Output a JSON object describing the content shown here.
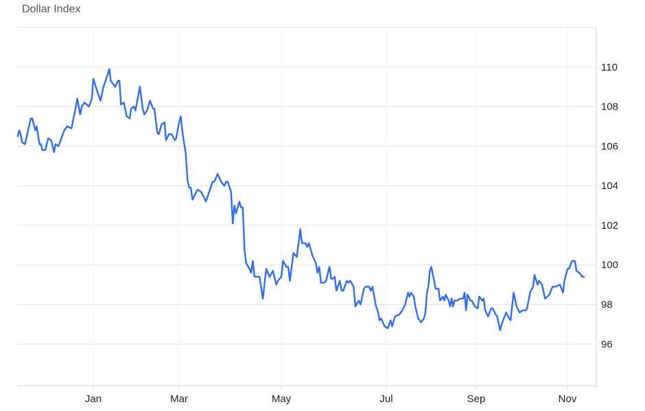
{
  "chart_data": {
    "type": "line",
    "title": "Dollar Index",
    "xlabel": "",
    "ylabel": "",
    "ylim": [
      93.9,
      112
    ],
    "grid": true,
    "y_axis_side": "right",
    "y_ticks": [
      96,
      98,
      100,
      102,
      104,
      106,
      108,
      110
    ],
    "x_ticks": [
      {
        "label": "Jan",
        "date": "2025-01-01"
      },
      {
        "label": "Mar",
        "date": "2025-03-01"
      },
      {
        "label": "May",
        "date": "2025-05-01"
      },
      {
        "label": "Jul",
        "date": "2025-07-01"
      },
      {
        "label": "Sep",
        "date": "2025-09-01"
      },
      {
        "label": "Nov",
        "date": "2025-11-01"
      }
    ],
    "line_color": "#2f6bff",
    "series": [
      {
        "points": [
          [
            "2024-11-10",
            106.5
          ],
          [
            "2024-11-11",
            106.8
          ],
          [
            "2024-11-12",
            106.6
          ],
          [
            "2024-11-13",
            106.2
          ],
          [
            "2024-11-15",
            106.1
          ],
          [
            "2024-11-19",
            107.4
          ],
          [
            "2024-11-20",
            107.4
          ],
          [
            "2024-11-22",
            106.8
          ],
          [
            "2024-11-23",
            107.0
          ],
          [
            "2024-11-25",
            106.1
          ],
          [
            "2024-11-26",
            106.1
          ],
          [
            "2024-11-27",
            105.8
          ],
          [
            "2024-11-29",
            105.8
          ],
          [
            "2024-12-01",
            106.4
          ],
          [
            "2024-12-03",
            106.3
          ],
          [
            "2024-12-05",
            105.7
          ],
          [
            "2024-12-06",
            106.1
          ],
          [
            "2024-12-08",
            106.0
          ],
          [
            "2024-12-12",
            106.8
          ],
          [
            "2024-12-14",
            107.0
          ],
          [
            "2024-12-17",
            106.9
          ],
          [
            "2024-12-20",
            108.0
          ],
          [
            "2024-12-21",
            108.4
          ],
          [
            "2024-12-23",
            107.6
          ],
          [
            "2024-12-24",
            108.0
          ],
          [
            "2024-12-26",
            108.2
          ],
          [
            "2024-12-29",
            108.0
          ],
          [
            "2024-12-31",
            108.4
          ],
          [
            "2025-01-01",
            109.4
          ],
          [
            "2025-01-04",
            108.7
          ],
          [
            "2025-01-06",
            108.3
          ],
          [
            "2025-01-08",
            109.0
          ],
          [
            "2025-01-09",
            109.2
          ],
          [
            "2025-01-12",
            109.9
          ],
          [
            "2025-01-13",
            109.3
          ],
          [
            "2025-01-16",
            109.0
          ],
          [
            "2025-01-18",
            109.3
          ],
          [
            "2025-01-19",
            109.3
          ],
          [
            "2025-01-20",
            108.1
          ],
          [
            "2025-01-22",
            108.2
          ],
          [
            "2025-01-24",
            107.5
          ],
          [
            "2025-01-26",
            107.4
          ],
          [
            "2025-01-27",
            107.9
          ],
          [
            "2025-01-29",
            108.0
          ],
          [
            "2025-01-30",
            107.8
          ],
          [
            "2025-02-02",
            109.0
          ],
          [
            "2025-02-04",
            107.9
          ],
          [
            "2025-02-05",
            107.6
          ],
          [
            "2025-02-07",
            107.8
          ],
          [
            "2025-02-09",
            108.3
          ],
          [
            "2025-02-11",
            107.9
          ],
          [
            "2025-02-12",
            107.9
          ],
          [
            "2025-02-14",
            106.7
          ],
          [
            "2025-02-15",
            106.6
          ],
          [
            "2025-02-17",
            107.1
          ],
          [
            "2025-02-19",
            107.2
          ],
          [
            "2025-02-20",
            106.3
          ],
          [
            "2025-02-22",
            106.6
          ],
          [
            "2025-02-24",
            106.6
          ],
          [
            "2025-02-26",
            106.3
          ],
          [
            "2025-02-27",
            106.4
          ],
          [
            "2025-03-01",
            107.2
          ],
          [
            "2025-03-02",
            107.5
          ],
          [
            "2025-03-03",
            106.7
          ],
          [
            "2025-03-05",
            105.6
          ],
          [
            "2025-03-06",
            104.3
          ],
          [
            "2025-03-07",
            103.9
          ],
          [
            "2025-03-08",
            103.9
          ],
          [
            "2025-03-09",
            103.3
          ],
          [
            "2025-03-12",
            103.8
          ],
          [
            "2025-03-14",
            103.7
          ],
          [
            "2025-03-16",
            103.4
          ],
          [
            "2025-03-17",
            103.2
          ],
          [
            "2025-03-19",
            103.7
          ],
          [
            "2025-03-21",
            104.2
          ],
          [
            "2025-03-22",
            104.2
          ],
          [
            "2025-03-24",
            104.6
          ],
          [
            "2025-03-26",
            104.2
          ],
          [
            "2025-03-28",
            104.0
          ],
          [
            "2025-03-29",
            104.2
          ],
          [
            "2025-03-30",
            104.2
          ],
          [
            "2025-04-01",
            103.7
          ],
          [
            "2025-04-02",
            102.1
          ],
          [
            "2025-04-03",
            103.0
          ],
          [
            "2025-04-04",
            102.6
          ],
          [
            "2025-04-06",
            103.2
          ],
          [
            "2025-04-07",
            102.9
          ],
          [
            "2025-04-08",
            102.9
          ],
          [
            "2025-04-09",
            100.8
          ],
          [
            "2025-04-10",
            100.1
          ],
          [
            "2025-04-12",
            99.8
          ],
          [
            "2025-04-13",
            99.6
          ],
          [
            "2025-04-14",
            100.2
          ],
          [
            "2025-04-15",
            99.4
          ],
          [
            "2025-04-18",
            99.4
          ],
          [
            "2025-04-20",
            98.3
          ],
          [
            "2025-04-22",
            99.8
          ],
          [
            "2025-04-24",
            99.4
          ],
          [
            "2025-04-26",
            99.7
          ],
          [
            "2025-04-28",
            99.0
          ],
          [
            "2025-04-29",
            99.2
          ],
          [
            "2025-05-01",
            99.4
          ],
          [
            "2025-05-02",
            100.2
          ],
          [
            "2025-05-04",
            99.9
          ],
          [
            "2025-05-05",
            99.9
          ],
          [
            "2025-05-06",
            99.2
          ],
          [
            "2025-05-08",
            100.6
          ],
          [
            "2025-05-10",
            100.4
          ],
          [
            "2025-05-12",
            101.8
          ],
          [
            "2025-05-13",
            101.1
          ],
          [
            "2025-05-15",
            101.1
          ],
          [
            "2025-05-16",
            100.9
          ],
          [
            "2025-05-17",
            101.1
          ],
          [
            "2025-05-19",
            100.5
          ],
          [
            "2025-05-21",
            100.1
          ],
          [
            "2025-05-22",
            99.6
          ],
          [
            "2025-05-23",
            99.9
          ],
          [
            "2025-05-24",
            99.1
          ],
          [
            "2025-05-26",
            99.1
          ],
          [
            "2025-05-27",
            99.2
          ],
          [
            "2025-05-29",
            99.9
          ],
          [
            "2025-05-30",
            99.3
          ],
          [
            "2025-05-31",
            99.3
          ],
          [
            "2025-06-01",
            99.4
          ],
          [
            "2025-06-02",
            98.7
          ],
          [
            "2025-06-04",
            99.2
          ],
          [
            "2025-06-05",
            98.7
          ],
          [
            "2025-06-06",
            98.7
          ],
          [
            "2025-06-08",
            99.2
          ],
          [
            "2025-06-09",
            99.1
          ],
          [
            "2025-06-10",
            99.2
          ],
          [
            "2025-06-12",
            98.9
          ],
          [
            "2025-06-13",
            97.9
          ],
          [
            "2025-06-15",
            98.2
          ],
          [
            "2025-06-16",
            98.0
          ],
          [
            "2025-06-18",
            98.8
          ],
          [
            "2025-06-19",
            98.9
          ],
          [
            "2025-06-21",
            98.9
          ],
          [
            "2025-06-22",
            98.7
          ],
          [
            "2025-06-23",
            98.9
          ],
          [
            "2025-06-25",
            97.9
          ],
          [
            "2025-06-26",
            97.7
          ],
          [
            "2025-06-27",
            97.2
          ],
          [
            "2025-06-28",
            97.3
          ],
          [
            "2025-06-30",
            96.9
          ],
          [
            "2025-07-02",
            96.8
          ],
          [
            "2025-07-04",
            97.2
          ],
          [
            "2025-07-05",
            96.9
          ],
          [
            "2025-07-07",
            97.4
          ],
          [
            "2025-07-10",
            97.5
          ],
          [
            "2025-07-12",
            97.7
          ],
          [
            "2025-07-14",
            98.0
          ],
          [
            "2025-07-16",
            98.6
          ],
          [
            "2025-07-17",
            98.4
          ],
          [
            "2025-07-18",
            98.6
          ],
          [
            "2025-07-20",
            98.4
          ],
          [
            "2025-07-21",
            97.9
          ],
          [
            "2025-07-23",
            97.3
          ],
          [
            "2025-07-25",
            97.1
          ],
          [
            "2025-07-27",
            97.3
          ],
          [
            "2025-07-28",
            97.6
          ],
          [
            "2025-07-29",
            98.6
          ],
          [
            "2025-07-30",
            98.9
          ],
          [
            "2025-07-31",
            99.7
          ],
          [
            "2025-08-01",
            99.9
          ],
          [
            "2025-08-03",
            99.2
          ],
          [
            "2025-08-04",
            98.8
          ],
          [
            "2025-08-06",
            98.8
          ],
          [
            "2025-08-07",
            98.2
          ],
          [
            "2025-08-09",
            98.4
          ],
          [
            "2025-08-10",
            98.2
          ],
          [
            "2025-08-11",
            98.5
          ],
          [
            "2025-08-13",
            98.2
          ],
          [
            "2025-08-14",
            97.9
          ],
          [
            "2025-08-15",
            98.3
          ],
          [
            "2025-08-16",
            97.9
          ],
          [
            "2025-08-17",
            98.2
          ],
          [
            "2025-08-19",
            98.2
          ],
          [
            "2025-08-21",
            98.3
          ],
          [
            "2025-08-23",
            98.3
          ],
          [
            "2025-08-24",
            98.6
          ],
          [
            "2025-08-25",
            97.7
          ],
          [
            "2025-08-26",
            98.5
          ],
          [
            "2025-08-28",
            98.2
          ],
          [
            "2025-08-29",
            98.2
          ],
          [
            "2025-08-31",
            97.9
          ],
          [
            "2025-09-02",
            97.8
          ],
          [
            "2025-09-03",
            98.4
          ],
          [
            "2025-09-05",
            98.2
          ],
          [
            "2025-09-06",
            98.3
          ],
          [
            "2025-09-07",
            97.7
          ],
          [
            "2025-09-09",
            97.4
          ],
          [
            "2025-09-11",
            97.8
          ],
          [
            "2025-09-12",
            97.8
          ],
          [
            "2025-09-14",
            97.5
          ],
          [
            "2025-09-15",
            97.4
          ],
          [
            "2025-09-17",
            96.7
          ],
          [
            "2025-09-18",
            97.0
          ],
          [
            "2025-09-21",
            97.6
          ],
          [
            "2025-09-23",
            97.3
          ],
          [
            "2025-09-24",
            97.2
          ],
          [
            "2025-09-26",
            98.6
          ],
          [
            "2025-09-28",
            97.9
          ],
          [
            "2025-09-30",
            97.6
          ],
          [
            "2025-10-02",
            97.7
          ],
          [
            "2025-10-04",
            97.7
          ],
          [
            "2025-10-05",
            97.8
          ],
          [
            "2025-10-07",
            98.6
          ],
          [
            "2025-10-09",
            98.9
          ],
          [
            "2025-10-10",
            99.5
          ],
          [
            "2025-10-12",
            99.0
          ],
          [
            "2025-10-13",
            99.2
          ],
          [
            "2025-10-15",
            99.0
          ],
          [
            "2025-10-17",
            98.3
          ],
          [
            "2025-10-20",
            98.5
          ],
          [
            "2025-10-22",
            98.9
          ],
          [
            "2025-10-24",
            98.9
          ],
          [
            "2025-10-27",
            99.0
          ],
          [
            "2025-10-28",
            98.8
          ],
          [
            "2025-10-29",
            98.6
          ],
          [
            "2025-10-30",
            99.2
          ],
          [
            "2025-11-01",
            99.8
          ],
          [
            "2025-11-02",
            99.8
          ],
          [
            "2025-11-04",
            100.2
          ],
          [
            "2025-11-06",
            100.2
          ],
          [
            "2025-11-07",
            99.7
          ],
          [
            "2025-11-09",
            99.6
          ],
          [
            "2025-11-11",
            99.4
          ],
          [
            "2025-11-12",
            99.4
          ]
        ]
      }
    ]
  }
}
